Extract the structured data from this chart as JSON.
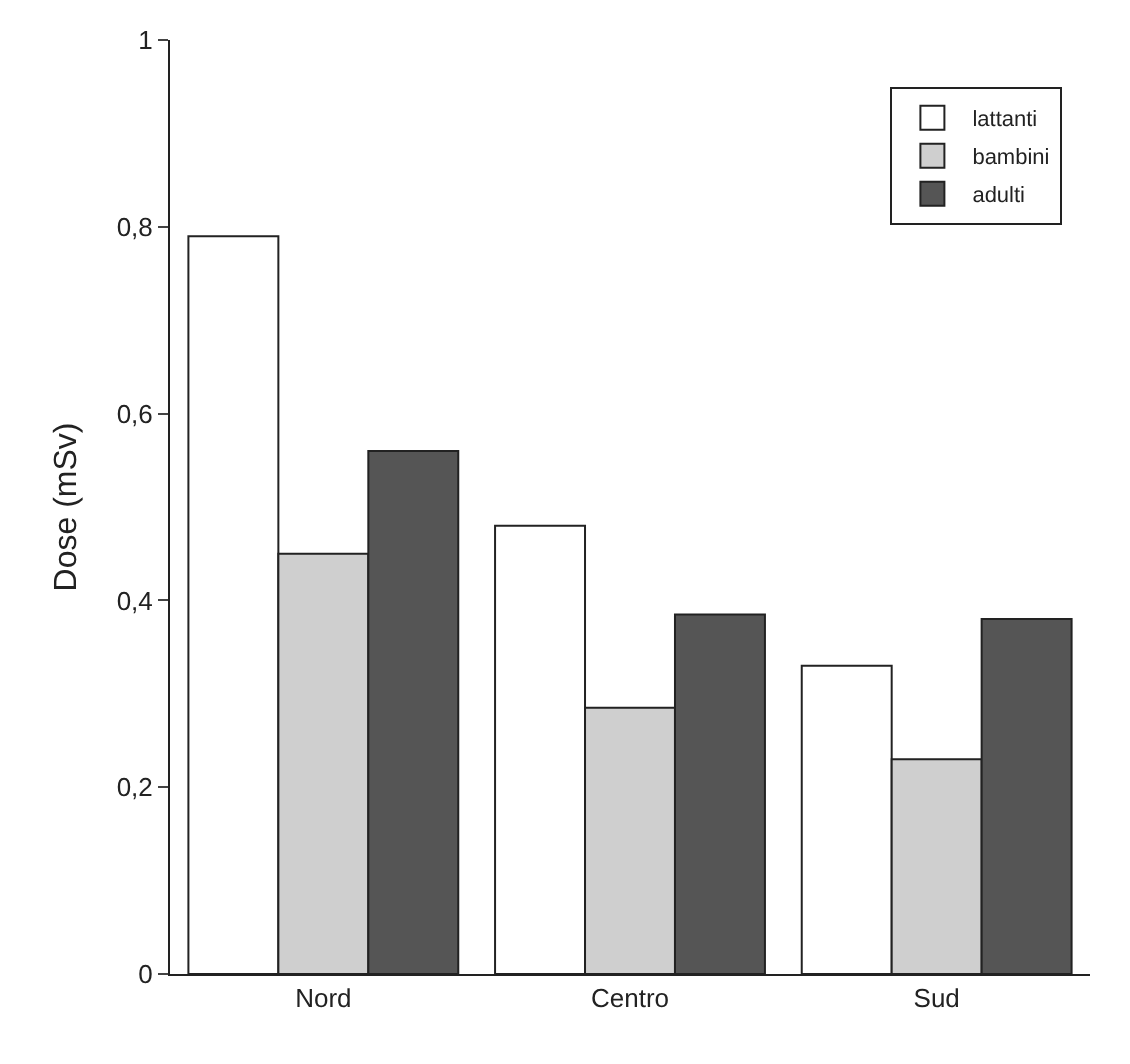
{
  "chart_data": {
    "type": "bar",
    "ylabel": "Dose (mSv)",
    "categories": [
      "Nord",
      "Centro",
      "Sud"
    ],
    "series": [
      {
        "name": "lattanti",
        "color": "#ffffff",
        "values": [
          0.79,
          0.48,
          0.33
        ]
      },
      {
        "name": "bambini",
        "color": "#cfcfcf",
        "values": [
          0.45,
          0.285,
          0.23
        ]
      },
      {
        "name": "adulti",
        "color": "#555555",
        "values": [
          0.56,
          0.385,
          0.38
        ]
      }
    ],
    "ylim": [
      0,
      1
    ],
    "yticks": [
      0,
      {
        "value": 0.2,
        "label": "0,2"
      },
      {
        "value": 0.4,
        "label": "0,4"
      },
      {
        "value": 0.6,
        "label": "0,6"
      },
      {
        "value": 0.8,
        "label": "0,8"
      },
      1
    ],
    "legend": "top right"
  }
}
